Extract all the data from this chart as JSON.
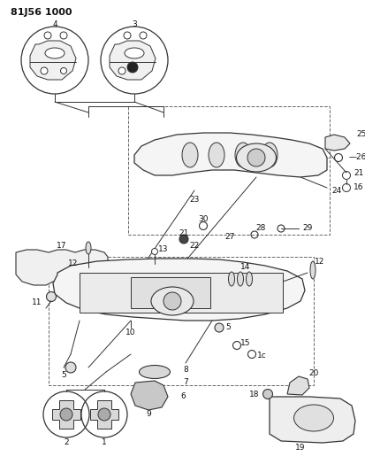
{
  "title": "81J56 1000",
  "bg_color": "#ffffff",
  "line_color": "#333333",
  "text_color": "#111111",
  "fig_width": 4.14,
  "fig_height": 5.33,
  "dpi": 100
}
